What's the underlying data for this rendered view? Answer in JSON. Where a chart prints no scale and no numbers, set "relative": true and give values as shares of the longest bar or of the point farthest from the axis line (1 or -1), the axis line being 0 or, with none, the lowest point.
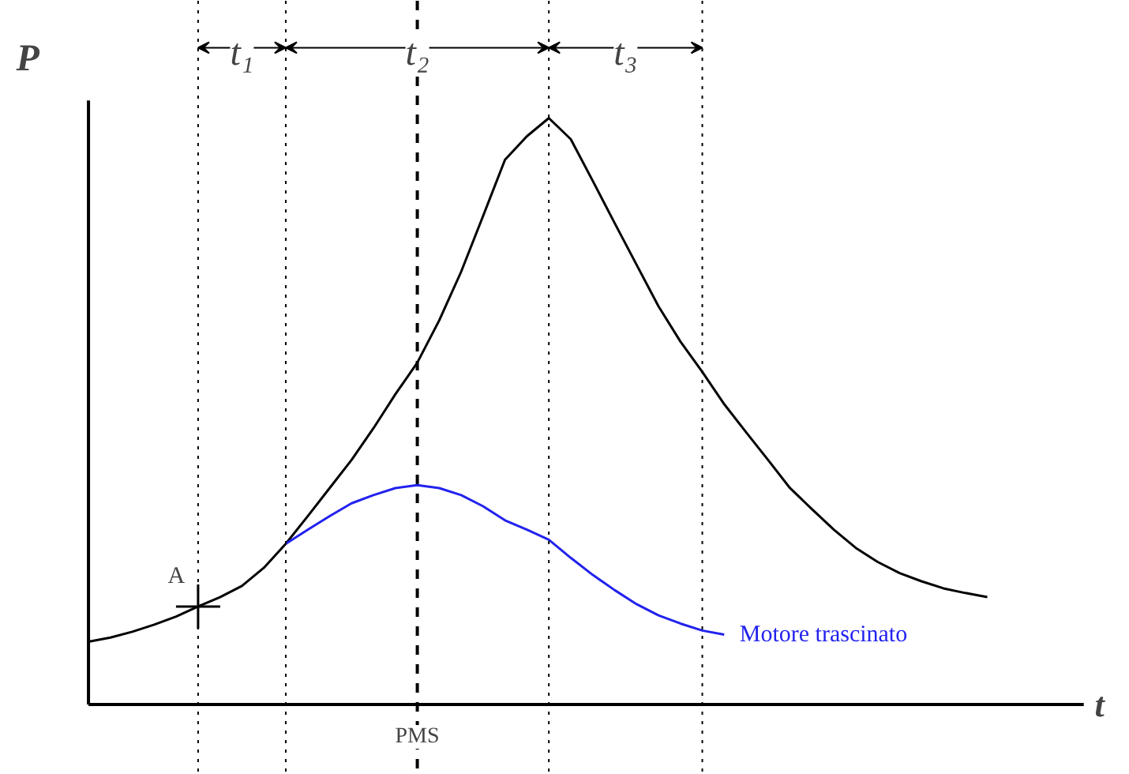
{
  "chart_data": {
    "type": "line",
    "relative": true,
    "xlabel": "t",
    "ylabel": "P",
    "grid": "x",
    "annotations": [
      {
        "text": "A",
        "y": 0.167
      },
      "t₁",
      "t₂",
      "t₃",
      "PMS"
    ],
    "categories": [
      null,
      null,
      null,
      null,
      null,
      null,
      null,
      null,
      null,
      null,
      null,
      null,
      null,
      null,
      null,
      null,
      null,
      null,
      null,
      null,
      null,
      null,
      null,
      null,
      null,
      null,
      null,
      null,
      null,
      null,
      null,
      null,
      null,
      null,
      null,
      null,
      null,
      null,
      null,
      null,
      null,
      null
    ],
    "series": [
      {
        "color": "#000000",
        "line_style": "solid",
        "values": [
          0.107,
          0.114,
          0.124,
          0.136,
          0.15,
          0.167,
          0.183,
          0.202,
          0.233,
          0.274,
          0.321,
          0.369,
          0.417,
          0.471,
          0.529,
          0.583,
          0.655,
          0.738,
          0.833,
          0.929,
          0.969,
          1.0,
          0.964,
          0.893,
          0.821,
          0.75,
          0.679,
          0.619,
          0.567,
          0.512,
          0.464,
          0.417,
          0.369,
          0.333,
          0.298,
          0.267,
          0.243,
          0.224,
          0.21,
          0.198,
          0.19,
          0.183
        ]
      },
      {
        "name": "Motore trascinato",
        "color": "#2222ee",
        "line_style": "solid",
        "values": [
          null,
          null,
          null,
          null,
          null,
          null,
          null,
          null,
          null,
          0.274,
          0.298,
          0.321,
          0.343,
          0.357,
          0.369,
          0.374,
          0.369,
          0.357,
          0.338,
          0.314,
          0.298,
          0.281,
          0.25,
          0.221,
          0.195,
          0.171,
          0.152,
          0.138,
          0.126,
          0.119,
          null,
          null,
          null,
          null,
          null,
          null,
          null,
          null,
          null,
          null,
          null,
          null
        ]
      }
    ]
  }
}
